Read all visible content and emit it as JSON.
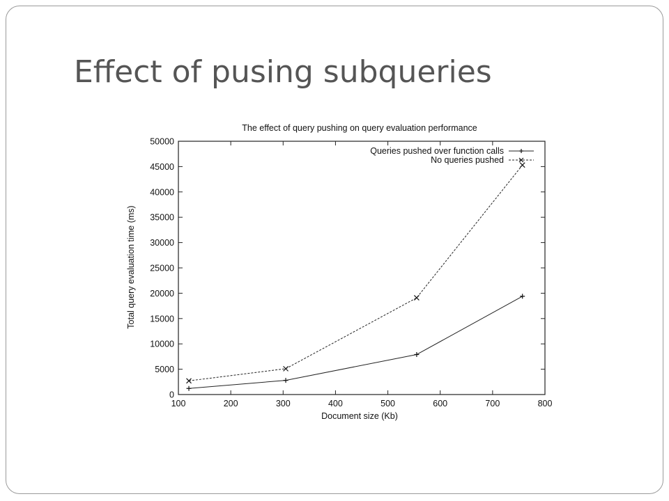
{
  "slide": {
    "title": "Effect of pusing subqueries"
  },
  "chart_data": {
    "type": "line",
    "title": "The effect of query pushing on query evaluation performance",
    "xlabel": "Document size (Kb)",
    "ylabel": "Total query evaluation time (ms)",
    "xlim": [
      100,
      800
    ],
    "ylim": [
      0,
      50000
    ],
    "xticks": [
      100,
      200,
      300,
      400,
      500,
      600,
      700,
      800
    ],
    "yticks": [
      0,
      5000,
      10000,
      15000,
      20000,
      25000,
      30000,
      35000,
      40000,
      45000,
      50000
    ],
    "grid": false,
    "legend_position": "top-right",
    "series": [
      {
        "name": "Queries  pushed over function calls",
        "marker": "plus",
        "line_style": "solid",
        "x": [
          120,
          305,
          555,
          757
        ],
        "y": [
          1200,
          2800,
          7900,
          19400
        ]
      },
      {
        "name": "No queries pushed",
        "marker": "cross",
        "line_style": "dashed",
        "x": [
          120,
          305,
          555,
          757
        ],
        "y": [
          2700,
          5100,
          19100,
          45300
        ]
      }
    ]
  }
}
